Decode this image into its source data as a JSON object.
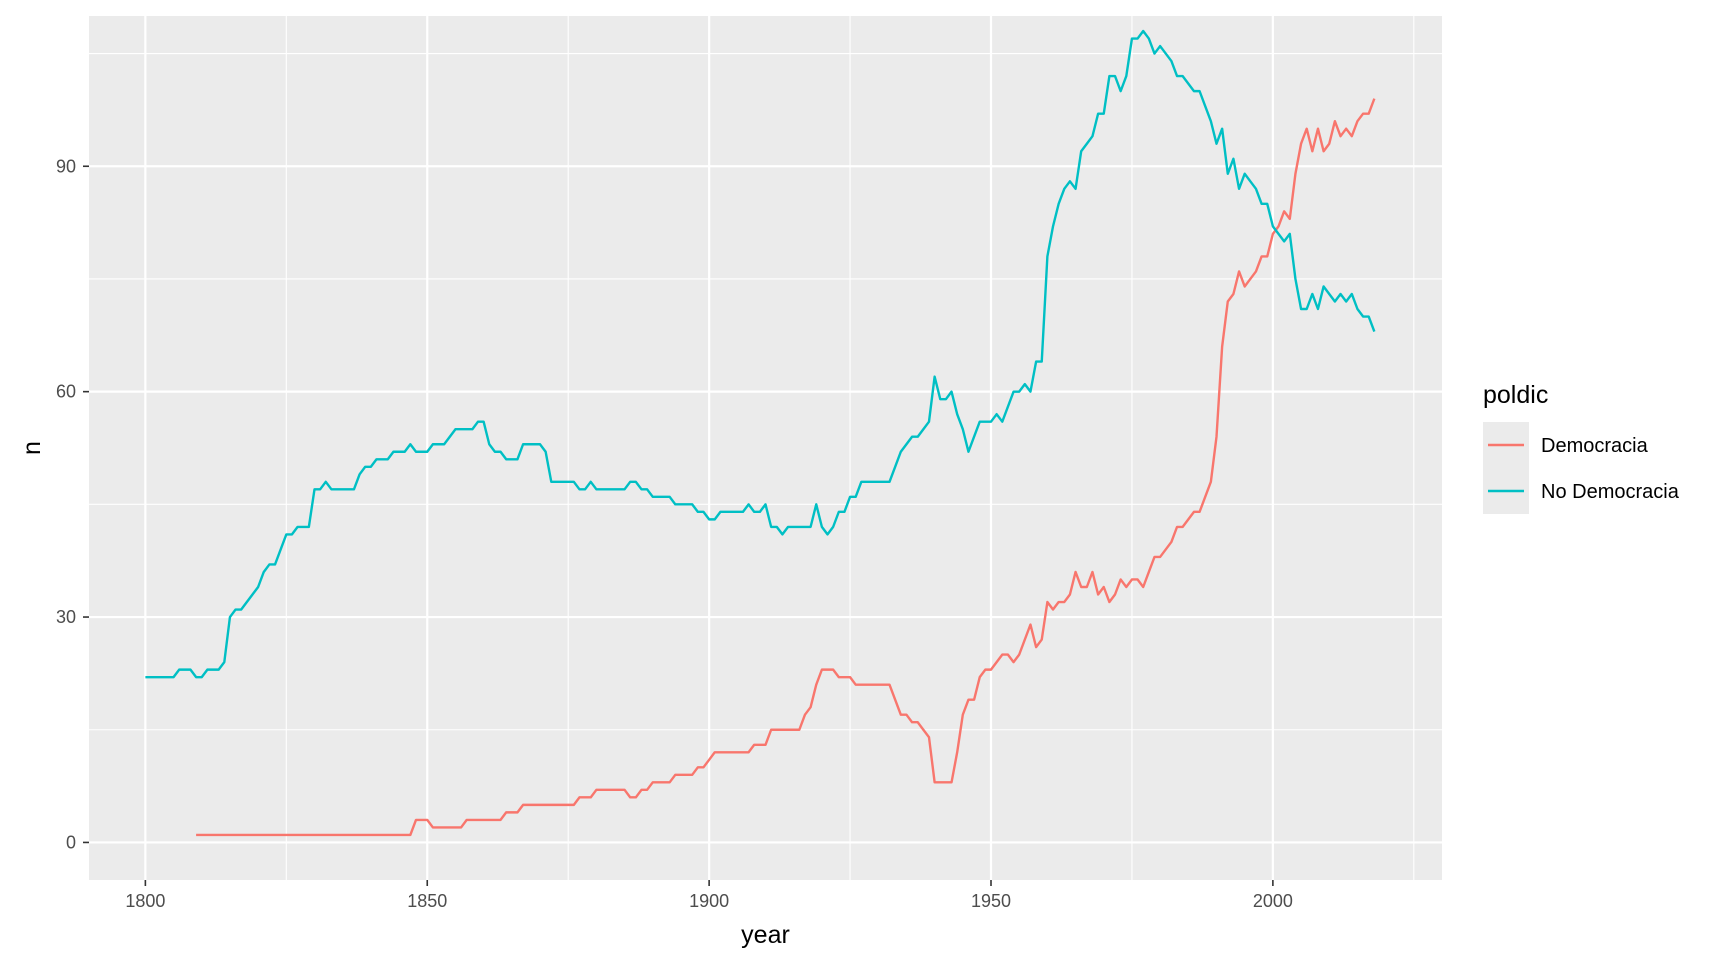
{
  "chart_data": {
    "type": "line",
    "title": "",
    "xlabel": "year",
    "ylabel": "n",
    "xlim": [
      1790,
      2030
    ],
    "ylim": [
      -5,
      110
    ],
    "x_ticks": [
      1800,
      1850,
      1900,
      1950,
      2000
    ],
    "y_ticks": [
      0,
      30,
      60,
      90
    ],
    "grid": true,
    "legend": {
      "title": "poldic",
      "position": "right"
    },
    "series": [
      {
        "name": "Democracia",
        "color": "#F8766D",
        "points": [
          [
            1809,
            1
          ],
          [
            1847,
            1
          ],
          [
            1848,
            3
          ],
          [
            1850,
            3
          ],
          [
            1851,
            2
          ],
          [
            1856,
            2
          ],
          [
            1857,
            3
          ],
          [
            1863,
            3
          ],
          [
            1864,
            4
          ],
          [
            1866,
            4
          ],
          [
            1867,
            5
          ],
          [
            1876,
            5
          ],
          [
            1877,
            6
          ],
          [
            1879,
            6
          ],
          [
            1880,
            7
          ],
          [
            1885,
            7
          ],
          [
            1886,
            6
          ],
          [
            1887,
            6
          ],
          [
            1888,
            7
          ],
          [
            1889,
            7
          ],
          [
            1890,
            8
          ],
          [
            1893,
            8
          ],
          [
            1894,
            9
          ],
          [
            1897,
            9
          ],
          [
            1898,
            10
          ],
          [
            1899,
            10
          ],
          [
            1900,
            11
          ],
          [
            1901,
            12
          ],
          [
            1907,
            12
          ],
          [
            1908,
            13
          ],
          [
            1910,
            13
          ],
          [
            1911,
            15
          ],
          [
            1916,
            15
          ],
          [
            1917,
            17
          ],
          [
            1918,
            18
          ],
          [
            1919,
            21
          ],
          [
            1920,
            23
          ],
          [
            1922,
            23
          ],
          [
            1923,
            22
          ],
          [
            1925,
            22
          ],
          [
            1926,
            21
          ],
          [
            1932,
            21
          ],
          [
            1933,
            19
          ],
          [
            1934,
            17
          ],
          [
            1935,
            17
          ],
          [
            1936,
            16
          ],
          [
            1937,
            16
          ],
          [
            1938,
            15
          ],
          [
            1939,
            14
          ],
          [
            1940,
            8
          ],
          [
            1943,
            8
          ],
          [
            1944,
            12
          ],
          [
            1945,
            17
          ],
          [
            1946,
            19
          ],
          [
            1947,
            19
          ],
          [
            1948,
            22
          ],
          [
            1949,
            23
          ],
          [
            1950,
            23
          ],
          [
            1951,
            24
          ],
          [
            1952,
            25
          ],
          [
            1953,
            25
          ],
          [
            1954,
            24
          ],
          [
            1955,
            25
          ],
          [
            1956,
            27
          ],
          [
            1957,
            29
          ],
          [
            1958,
            26
          ],
          [
            1959,
            27
          ],
          [
            1960,
            32
          ],
          [
            1961,
            31
          ],
          [
            1962,
            32
          ],
          [
            1963,
            32
          ],
          [
            1964,
            33
          ],
          [
            1965,
            36
          ],
          [
            1966,
            34
          ],
          [
            1967,
            34
          ],
          [
            1968,
            36
          ],
          [
            1969,
            33
          ],
          [
            1970,
            34
          ],
          [
            1971,
            32
          ],
          [
            1972,
            33
          ],
          [
            1973,
            35
          ],
          [
            1974,
            34
          ],
          [
            1975,
            35
          ],
          [
            1976,
            35
          ],
          [
            1977,
            34
          ],
          [
            1978,
            36
          ],
          [
            1979,
            38
          ],
          [
            1980,
            38
          ],
          [
            1981,
            39
          ],
          [
            1982,
            40
          ],
          [
            1983,
            42
          ],
          [
            1984,
            42
          ],
          [
            1985,
            43
          ],
          [
            1986,
            44
          ],
          [
            1987,
            44
          ],
          [
            1988,
            46
          ],
          [
            1989,
            48
          ],
          [
            1990,
            54
          ],
          [
            1991,
            66
          ],
          [
            1992,
            72
          ],
          [
            1993,
            73
          ],
          [
            1994,
            76
          ],
          [
            1995,
            74
          ],
          [
            1996,
            75
          ],
          [
            1997,
            76
          ],
          [
            1998,
            78
          ],
          [
            1999,
            78
          ],
          [
            2000,
            81
          ],
          [
            2001,
            82
          ],
          [
            2002,
            84
          ],
          [
            2003,
            83
          ],
          [
            2004,
            89
          ],
          [
            2005,
            93
          ],
          [
            2006,
            95
          ],
          [
            2007,
            92
          ],
          [
            2008,
            95
          ],
          [
            2009,
            92
          ],
          [
            2010,
            93
          ],
          [
            2011,
            96
          ],
          [
            2012,
            94
          ],
          [
            2013,
            95
          ],
          [
            2014,
            94
          ],
          [
            2015,
            96
          ],
          [
            2016,
            97
          ],
          [
            2017,
            97
          ],
          [
            2018,
            99
          ]
        ]
      },
      {
        "name": "No Democracia",
        "color": "#00BFC4",
        "points": [
          [
            1800,
            22
          ],
          [
            1805,
            22
          ],
          [
            1806,
            23
          ],
          [
            1808,
            23
          ],
          [
            1809,
            22
          ],
          [
            1810,
            22
          ],
          [
            1811,
            23
          ],
          [
            1813,
            23
          ],
          [
            1814,
            24
          ],
          [
            1815,
            30
          ],
          [
            1816,
            31
          ],
          [
            1817,
            31
          ],
          [
            1818,
            32
          ],
          [
            1819,
            33
          ],
          [
            1820,
            34
          ],
          [
            1821,
            36
          ],
          [
            1822,
            37
          ],
          [
            1823,
            37
          ],
          [
            1824,
            39
          ],
          [
            1825,
            41
          ],
          [
            1826,
            41
          ],
          [
            1827,
            42
          ],
          [
            1829,
            42
          ],
          [
            1830,
            47
          ],
          [
            1831,
            47
          ],
          [
            1832,
            48
          ],
          [
            1833,
            47
          ],
          [
            1837,
            47
          ],
          [
            1838,
            49
          ],
          [
            1839,
            50
          ],
          [
            1840,
            50
          ],
          [
            1841,
            51
          ],
          [
            1843,
            51
          ],
          [
            1844,
            52
          ],
          [
            1846,
            52
          ],
          [
            1847,
            53
          ],
          [
            1848,
            52
          ],
          [
            1850,
            52
          ],
          [
            1851,
            53
          ],
          [
            1853,
            53
          ],
          [
            1854,
            54
          ],
          [
            1855,
            55
          ],
          [
            1858,
            55
          ],
          [
            1859,
            56
          ],
          [
            1860,
            56
          ],
          [
            1861,
            53
          ],
          [
            1862,
            52
          ],
          [
            1863,
            52
          ],
          [
            1864,
            51
          ],
          [
            1866,
            51
          ],
          [
            1867,
            53
          ],
          [
            1870,
            53
          ],
          [
            1871,
            52
          ],
          [
            1872,
            48
          ],
          [
            1876,
            48
          ],
          [
            1877,
            47
          ],
          [
            1878,
            47
          ],
          [
            1879,
            48
          ],
          [
            1880,
            47
          ],
          [
            1885,
            47
          ],
          [
            1886,
            48
          ],
          [
            1887,
            48
          ],
          [
            1888,
            47
          ],
          [
            1889,
            47
          ],
          [
            1890,
            46
          ],
          [
            1893,
            46
          ],
          [
            1894,
            45
          ],
          [
            1897,
            45
          ],
          [
            1898,
            44
          ],
          [
            1899,
            44
          ],
          [
            1900,
            43
          ],
          [
            1901,
            43
          ],
          [
            1902,
            44
          ],
          [
            1906,
            44
          ],
          [
            1907,
            45
          ],
          [
            1908,
            44
          ],
          [
            1909,
            44
          ],
          [
            1910,
            45
          ],
          [
            1911,
            42
          ],
          [
            1912,
            42
          ],
          [
            1913,
            41
          ],
          [
            1914,
            42
          ],
          [
            1918,
            42
          ],
          [
            1919,
            45
          ],
          [
            1920,
            42
          ],
          [
            1921,
            41
          ],
          [
            1922,
            42
          ],
          [
            1923,
            44
          ],
          [
            1924,
            44
          ],
          [
            1925,
            46
          ],
          [
            1926,
            46
          ],
          [
            1927,
            48
          ],
          [
            1932,
            48
          ],
          [
            1933,
            50
          ],
          [
            1934,
            52
          ],
          [
            1935,
            53
          ],
          [
            1936,
            54
          ],
          [
            1937,
            54
          ],
          [
            1938,
            55
          ],
          [
            1939,
            56
          ],
          [
            1940,
            62
          ],
          [
            1941,
            59
          ],
          [
            1942,
            59
          ],
          [
            1943,
            60
          ],
          [
            1944,
            57
          ],
          [
            1945,
            55
          ],
          [
            1946,
            52
          ],
          [
            1947,
            54
          ],
          [
            1948,
            56
          ],
          [
            1950,
            56
          ],
          [
            1951,
            57
          ],
          [
            1952,
            56
          ],
          [
            1953,
            58
          ],
          [
            1954,
            60
          ],
          [
            1955,
            60
          ],
          [
            1956,
            61
          ],
          [
            1957,
            60
          ],
          [
            1958,
            64
          ],
          [
            1959,
            64
          ],
          [
            1960,
            78
          ],
          [
            1961,
            82
          ],
          [
            1962,
            85
          ],
          [
            1963,
            87
          ],
          [
            1964,
            88
          ],
          [
            1965,
            87
          ],
          [
            1966,
            92
          ],
          [
            1967,
            93
          ],
          [
            1968,
            94
          ],
          [
            1969,
            97
          ],
          [
            1970,
            97
          ],
          [
            1971,
            102
          ],
          [
            1972,
            102
          ],
          [
            1973,
            100
          ],
          [
            1974,
            102
          ],
          [
            1975,
            107
          ],
          [
            1976,
            107
          ],
          [
            1977,
            108
          ],
          [
            1978,
            107
          ],
          [
            1979,
            105
          ],
          [
            1980,
            106
          ],
          [
            1981,
            105
          ],
          [
            1982,
            104
          ],
          [
            1983,
            102
          ],
          [
            1984,
            102
          ],
          [
            1985,
            101
          ],
          [
            1986,
            100
          ],
          [
            1987,
            100
          ],
          [
            1988,
            98
          ],
          [
            1989,
            96
          ],
          [
            1990,
            93
          ],
          [
            1991,
            95
          ],
          [
            1992,
            89
          ],
          [
            1993,
            91
          ],
          [
            1994,
            87
          ],
          [
            1995,
            89
          ],
          [
            1996,
            88
          ],
          [
            1997,
            87
          ],
          [
            1998,
            85
          ],
          [
            1999,
            85
          ],
          [
            2000,
            82
          ],
          [
            2001,
            81
          ],
          [
            2002,
            80
          ],
          [
            2003,
            81
          ],
          [
            2004,
            75
          ],
          [
            2005,
            71
          ],
          [
            2006,
            71
          ],
          [
            2007,
            73
          ],
          [
            2008,
            71
          ],
          [
            2009,
            74
          ],
          [
            2010,
            73
          ],
          [
            2011,
            72
          ],
          [
            2012,
            73
          ],
          [
            2013,
            72
          ],
          [
            2014,
            73
          ],
          [
            2015,
            71
          ],
          [
            2016,
            70
          ],
          [
            2017,
            70
          ],
          [
            2018,
            68
          ]
        ]
      }
    ]
  }
}
